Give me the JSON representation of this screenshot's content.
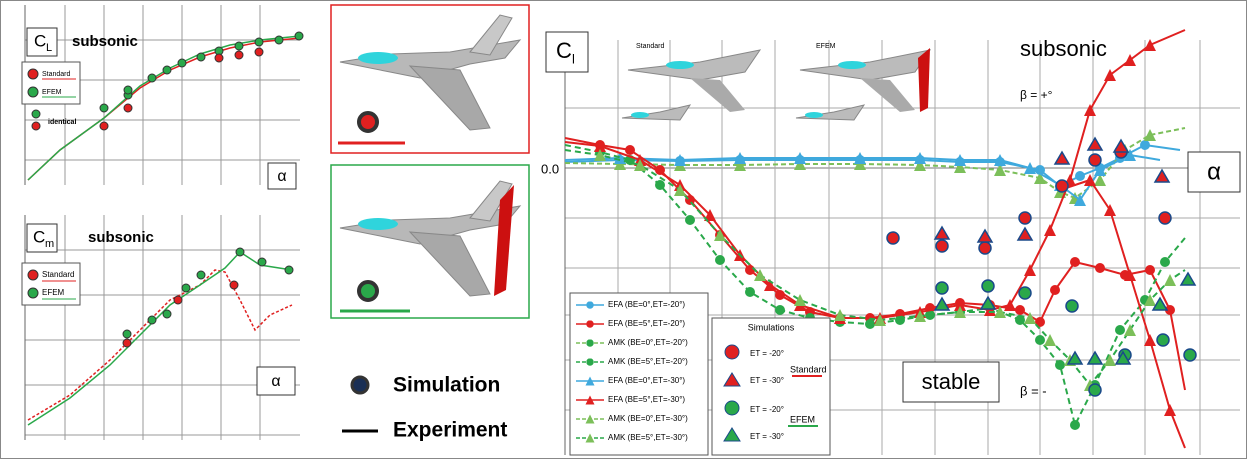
{
  "panels": {
    "lift": {
      "symbol": "C",
      "subscript": "L",
      "title": "subsonic",
      "legend": [
        "Standard",
        "EFEM"
      ],
      "annotation": "identical",
      "x_label": "α"
    },
    "pitch": {
      "symbol": "C",
      "subscript": "m",
      "title": "subsonic",
      "legend": [
        "Standard",
        "EFEM"
      ],
      "x_label": "α"
    },
    "roll": {
      "symbol": "C",
      "subscript": "l",
      "title": "subsonic",
      "images": [
        "Standard",
        "EFEM"
      ],
      "beta_pos": "β = +°",
      "zero_label": "0.0",
      "x_label": "α",
      "stable": "stable",
      "beta_neg": "β = -",
      "legend": [
        "EFA (BE=0°,ET=-20°)",
        "EFA (BE=5°,ET=-20°)",
        "AMK (BE=0°,ET=-20°)",
        "AMK (BE=5°,ET=-20°)",
        "EFA (BE=0°,ET=-30°)",
        "EFA (BE=5°,ET=-30°)",
        "AMK (BE=0°,ET=-30°)",
        "AMK (BE=5°,ET=-30°)"
      ],
      "sim_legend": {
        "title": "Simulations",
        "items": [
          "ET = -20°",
          "ET = -30°",
          "ET = -20°",
          "ET = -30°"
        ],
        "groups": [
          "Standard",
          "EFEM"
        ]
      }
    }
  },
  "key": {
    "simulation": "Simulation",
    "experiment": "Experiment"
  }
}
